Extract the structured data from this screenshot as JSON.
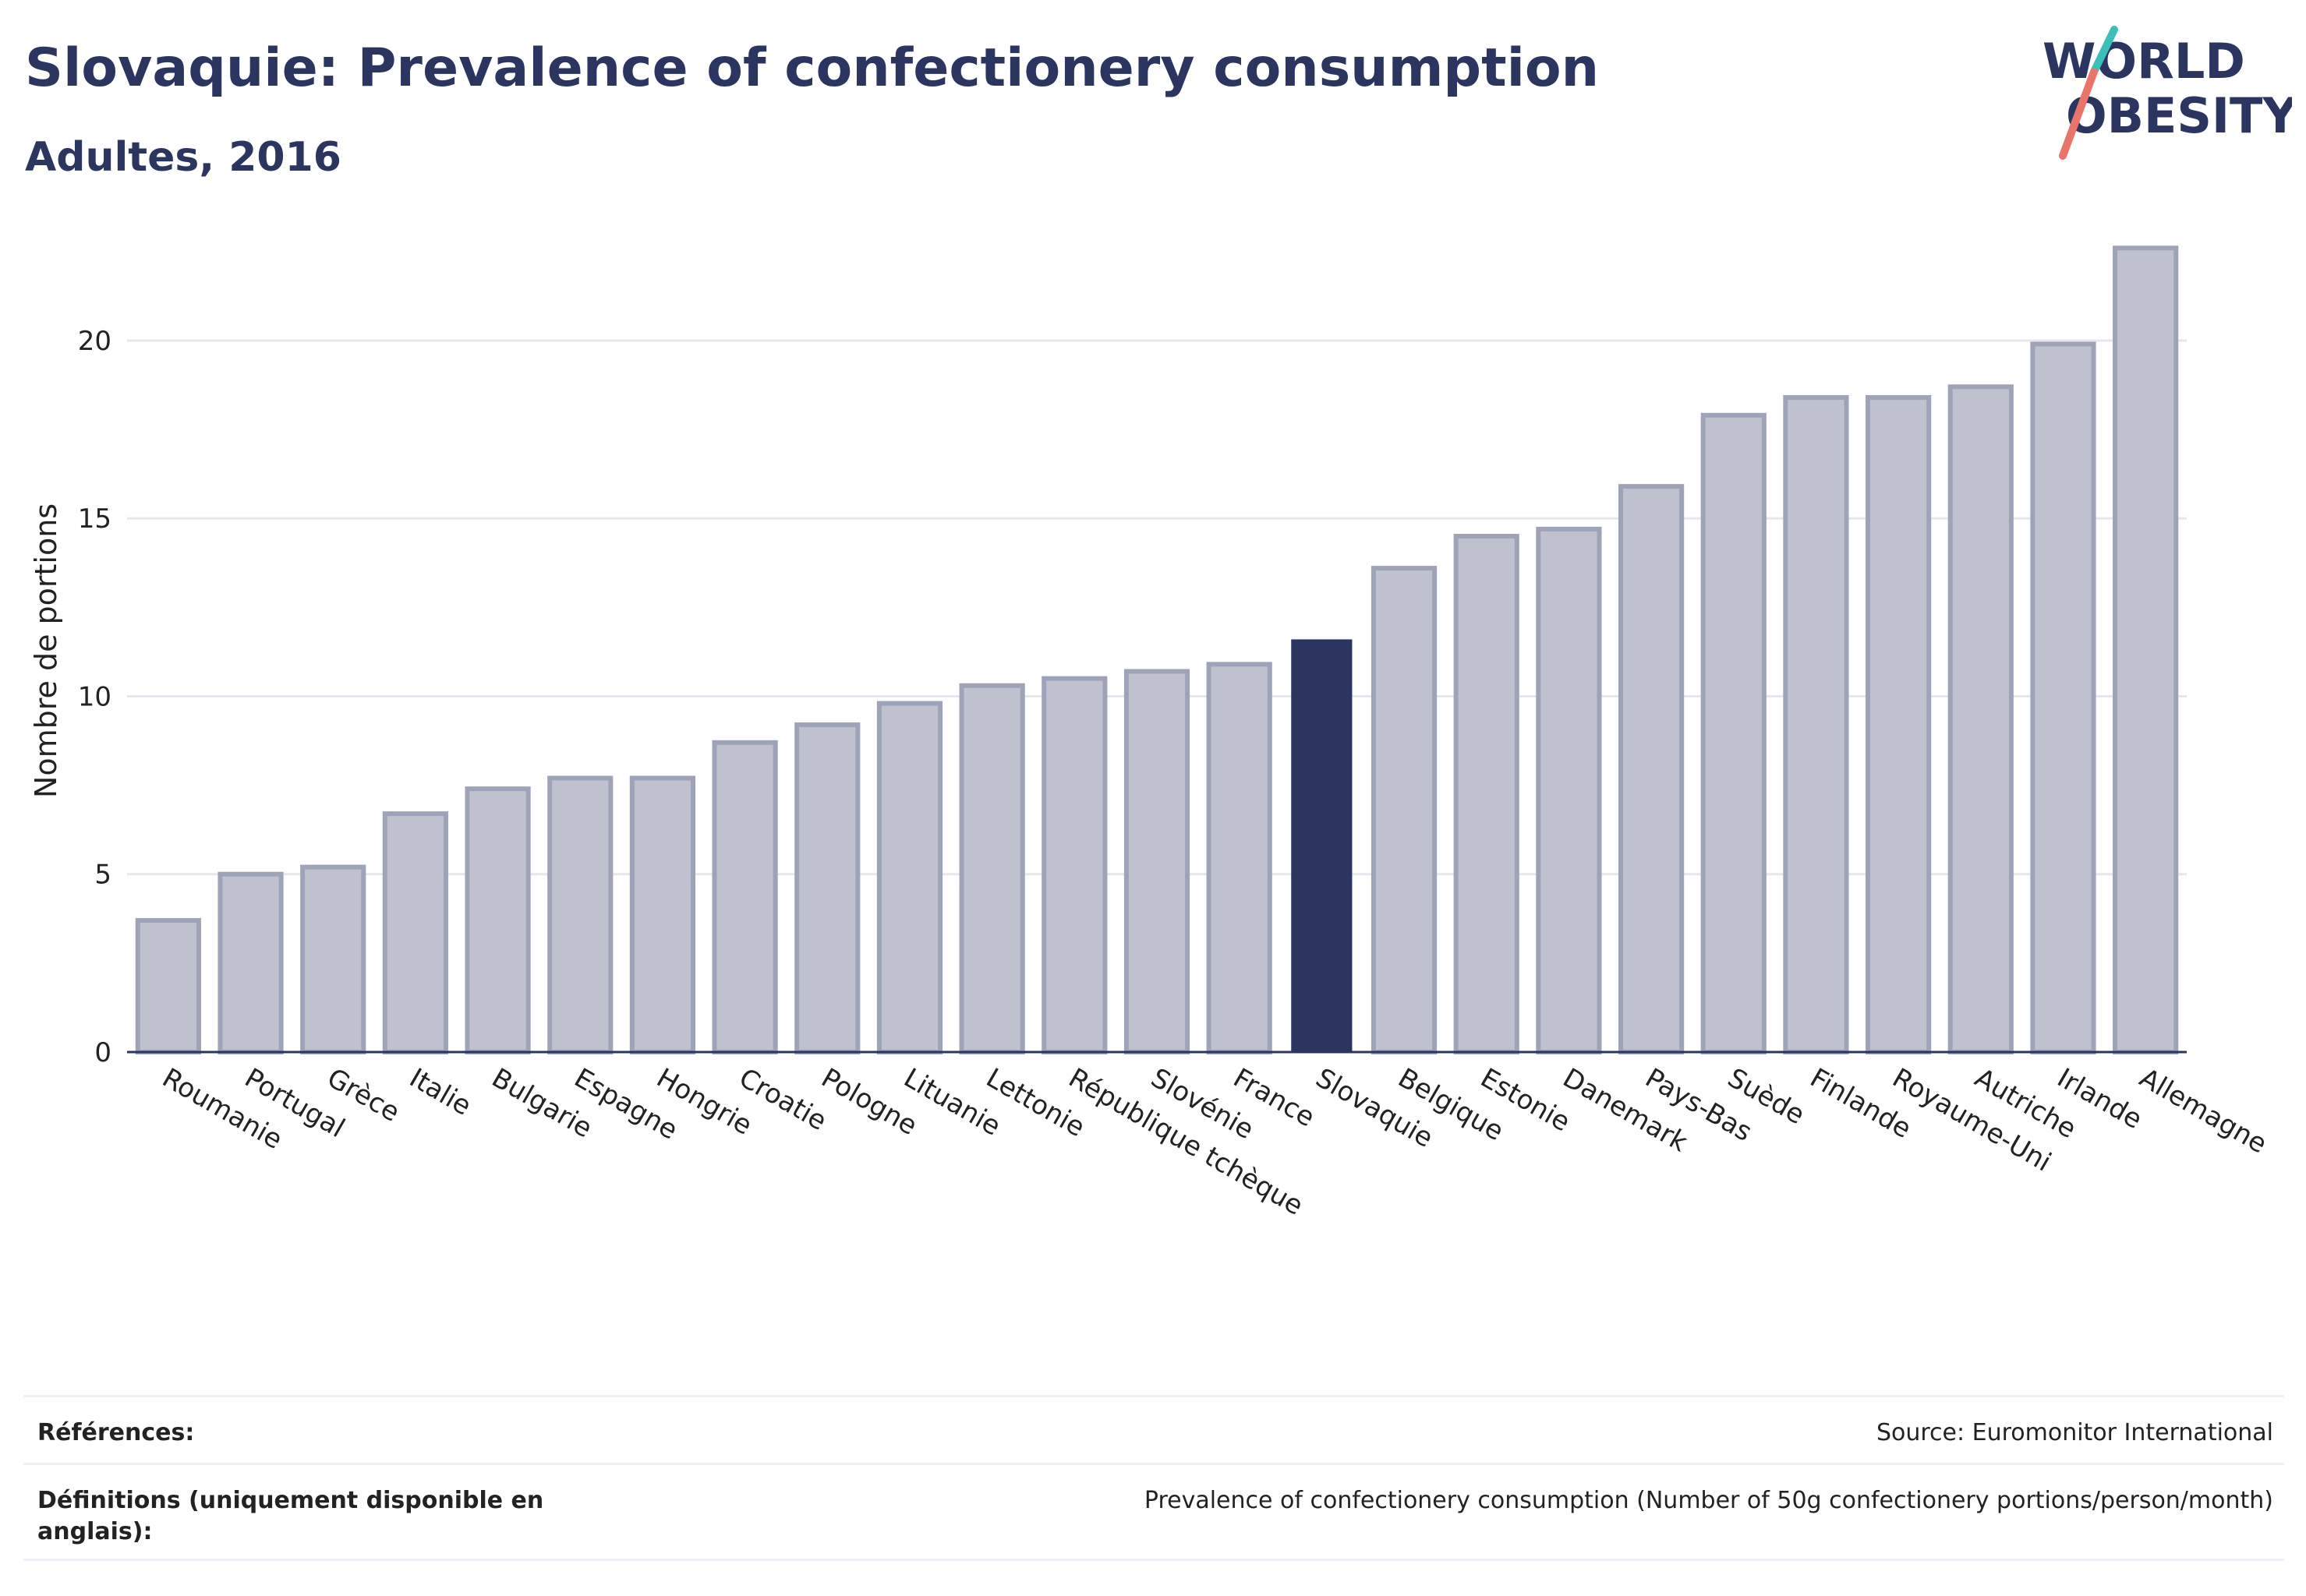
{
  "header": {
    "title": "Slovaquie: Prevalence of confectionery consumption",
    "subtitle": "Adultes, 2016"
  },
  "logo": {
    "line1": "WORLD",
    "line2": "OBESITY",
    "icon": "world-obesity-logo"
  },
  "colors": {
    "highlight": "#2b3560",
    "bar": "#bfc2ce",
    "bar_border": "#9ea3b8",
    "title": "#2b3560",
    "grid": "#e6e7ec"
  },
  "chart_data": {
    "type": "bar",
    "title": "Slovaquie: Prevalence of confectionery consumption",
    "subtitle": "Adultes, 2016",
    "xlabel": "",
    "ylabel": "Nombre de portions",
    "ylim": [
      0,
      23
    ],
    "yticks": [
      0,
      5,
      10,
      15,
      20
    ],
    "grid": true,
    "highlight": "Slovaquie",
    "categories": [
      "Roumanie",
      "Portugal",
      "Grèce",
      "Italie",
      "Bulgarie",
      "Espagne",
      "Hongrie",
      "Croatie",
      "Pologne",
      "Lituanie",
      "Lettonie",
      "République tchèque",
      "Slovénie",
      "France",
      "Slovaquie",
      "Belgique",
      "Estonie",
      "Danemark",
      "Pays-Bas",
      "Suède",
      "Finlande",
      "Royaume-Uni",
      "Autriche",
      "Irlande",
      "Allemagne"
    ],
    "values": [
      3.7,
      5.0,
      5.2,
      6.7,
      7.4,
      7.7,
      7.7,
      8.7,
      9.2,
      9.8,
      10.3,
      10.5,
      10.7,
      10.9,
      11.6,
      13.6,
      14.5,
      14.7,
      15.9,
      17.9,
      18.4,
      18.4,
      18.7,
      19.9,
      22.6
    ]
  },
  "footer": {
    "references_label": "Références:",
    "references_value": "Source: Euromonitor International",
    "definitions_label": "Définitions (uniquement disponible en anglais):",
    "definitions_value": "Prevalence of confectionery consumption (Number of 50g confectionery portions/person/month)"
  }
}
